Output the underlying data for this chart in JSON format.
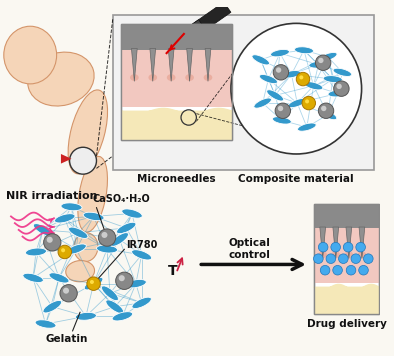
{
  "bg_color": "#faf8f2",
  "skin_pink": "#f2c8c0",
  "skin_dark": "#e8a898",
  "skin_yellow": "#f5e8b8",
  "blue_oval": "#3399cc",
  "gray_ball": "#888888",
  "yellow_ball": "#ddaa00",
  "blue_dot": "#44aaee",
  "pink_line": "#ee3388",
  "text_color": "#111111",
  "label_nir": "NIR irradiation",
  "label_caso4": "CaSO₄·H₂O",
  "label_ir780": "IR780",
  "label_gelatin": "Gelatin",
  "label_microneedles": "Microneedles",
  "label_composite": "Composite material",
  "label_optical": "Optical\ncontrol",
  "label_drug": "Drug delivery",
  "label_T": "T",
  "arm_skin": "#f5d5b8",
  "arm_edge": "#d4956a"
}
